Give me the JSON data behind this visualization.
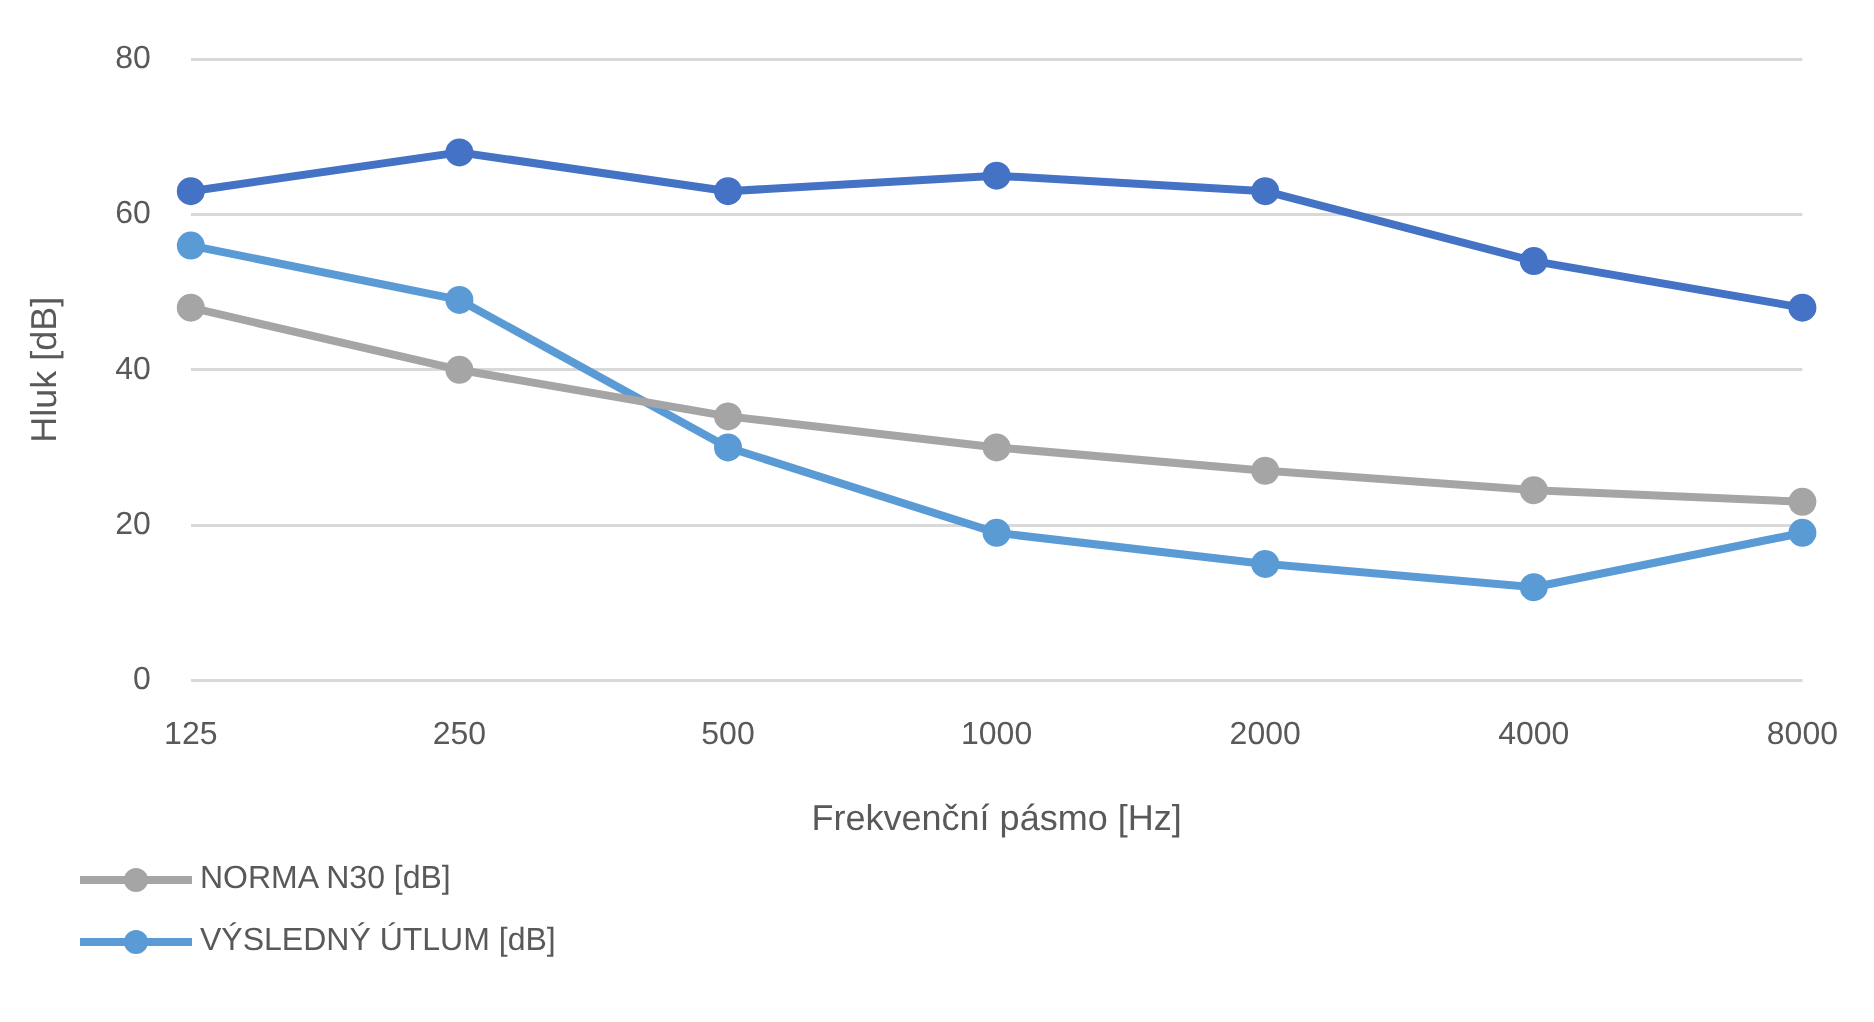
{
  "chart_data": {
    "type": "line",
    "xlabel": "Frekvenční pásmo [Hz]",
    "ylabel": "Hluk [dB]",
    "categories": [
      "125",
      "250",
      "500",
      "1000",
      "2000",
      "4000",
      "8000"
    ],
    "series": [
      {
        "color": "#4472c4",
        "values": [
          63,
          68,
          63,
          65,
          63,
          54,
          48
        ]
      },
      {
        "name": "NORMA N30 [dB]",
        "color": "#a5a5a5",
        "values": [
          48,
          40,
          34,
          30,
          27,
          24.5,
          23
        ]
      },
      {
        "name": "VÝSLEDNÝ ÚTLUM [dB]",
        "color": "#5b9bd5",
        "values": [
          56,
          49,
          30,
          19,
          15,
          12,
          19
        ]
      }
    ],
    "ylim": [
      0,
      80
    ],
    "yticks": [
      0,
      20,
      40,
      60,
      80
    ],
    "grid": "y",
    "legend": "bottom",
    "marker": "circle",
    "line_style": "solid"
  }
}
